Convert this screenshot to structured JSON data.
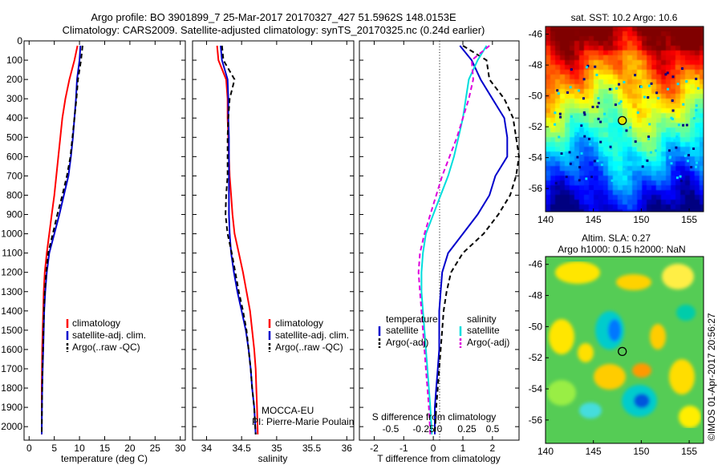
{
  "header": {
    "line1": "Argo profile: BO 3901899_7 25-Mar-2017 20170327_427 51.5962S 148.0153E",
    "line2": "Climatology: CARS2009. Satellite-adjusted climatology: synTS_20170325.nc (0.24d earlier)"
  },
  "side_label": "©IMOS 01-Apr-2017 20:56:27",
  "pi_label": {
    "line1": "MOCCA-EU",
    "line2": "PI: Pierre-Marie Poulain"
  },
  "colors": {
    "climatology": "#ff0000",
    "satellite": "#0000cc",
    "argo": "#000000",
    "salinity_sat": "#00dddd",
    "salinity_argo": "#dd00dd"
  },
  "chart_data": [
    {
      "type": "line",
      "panel": "temperature",
      "xlabel": "temperature (deg C)",
      "ylabel": "",
      "xlim": [
        -1,
        31
      ],
      "ylim": [
        0,
        2070
      ],
      "xticks": [
        0,
        5,
        10,
        15,
        20,
        25,
        30
      ],
      "yticks": [
        0,
        100,
        200,
        300,
        400,
        500,
        600,
        700,
        800,
        900,
        1000,
        1100,
        1200,
        1300,
        1400,
        1500,
        1600,
        1700,
        1800,
        1900,
        2000
      ],
      "legend": [
        "climatology",
        "satellite-adj. clim.",
        "Argo(..raw -QC)"
      ],
      "series": [
        {
          "name": "climatology",
          "style": "solid",
          "color": "#ff0000",
          "x": [
            9.6,
            9.0,
            8.0,
            7.2,
            6.6,
            6.2,
            5.8,
            5.4,
            5.0,
            4.5,
            4.0,
            3.5,
            3.1,
            2.9,
            2.8,
            2.7,
            2.6,
            2.55,
            2.5,
            2.5,
            2.5
          ],
          "y": [
            25,
            100,
            200,
            300,
            400,
            500,
            600,
            700,
            800,
            900,
            1000,
            1100,
            1200,
            1300,
            1400,
            1500,
            1600,
            1700,
            1800,
            1900,
            2040
          ]
        },
        {
          "name": "satellite-adj. clim.",
          "style": "solid",
          "color": "#0000cc",
          "x": [
            10.2,
            10.0,
            9.5,
            9.3,
            9.0,
            8.7,
            8.3,
            7.8,
            6.9,
            6.0,
            5.0,
            4.0,
            3.5,
            3.2,
            3.0,
            2.9,
            2.8,
            2.7,
            2.6,
            2.55,
            2.5
          ],
          "y": [
            25,
            100,
            200,
            300,
            400,
            500,
            600,
            700,
            800,
            900,
            1000,
            1100,
            1200,
            1300,
            1400,
            1500,
            1600,
            1700,
            1800,
            1900,
            2040
          ]
        },
        {
          "name": "Argo(..raw -QC)",
          "style": "dashed",
          "color": "#000000",
          "x": [
            10.6,
            10.3,
            9.7,
            9.4,
            9.0,
            8.6,
            8.2,
            7.5,
            6.6,
            5.6,
            4.7,
            3.8,
            3.4,
            3.1,
            2.95,
            2.85,
            2.75,
            2.65,
            2.6,
            2.55,
            2.5
          ],
          "y": [
            25,
            100,
            200,
            300,
            400,
            500,
            600,
            700,
            800,
            900,
            1000,
            1100,
            1200,
            1300,
            1400,
            1500,
            1600,
            1700,
            1800,
            1900,
            2040
          ]
        }
      ]
    },
    {
      "type": "line",
      "panel": "salinity",
      "xlabel": "salinity",
      "ylabel": "",
      "xlim": [
        33.8,
        36.1
      ],
      "ylim": [
        0,
        2070
      ],
      "xticks": [
        34,
        34.5,
        35,
        35.5,
        36
      ],
      "legend": [
        "climatology",
        "satellite-adj. clim.",
        "Argo(..raw -QC)"
      ],
      "series": [
        {
          "name": "climatology",
          "style": "solid",
          "color": "#ff0000",
          "x": [
            34.15,
            34.17,
            34.28,
            34.3,
            34.3,
            34.31,
            34.32,
            34.33,
            34.35,
            34.37,
            34.4,
            34.46,
            34.52,
            34.57,
            34.62,
            34.65,
            34.68,
            34.7,
            34.71,
            34.72,
            34.73
          ],
          "y": [
            25,
            100,
            200,
            300,
            400,
            500,
            600,
            700,
            800,
            900,
            1000,
            1100,
            1200,
            1300,
            1400,
            1500,
            1600,
            1700,
            1800,
            1900,
            2040
          ]
        },
        {
          "name": "satellite-adj. clim.",
          "style": "solid",
          "color": "#0000cc",
          "x": [
            34.2,
            34.22,
            34.3,
            34.31,
            34.31,
            34.32,
            34.32,
            34.32,
            34.32,
            34.32,
            34.33,
            34.35,
            34.39,
            34.44,
            34.5,
            34.56,
            34.6,
            34.63,
            34.65,
            34.68,
            34.7
          ],
          "y": [
            25,
            100,
            200,
            300,
            400,
            500,
            600,
            700,
            800,
            900,
            1000,
            1100,
            1200,
            1300,
            1400,
            1500,
            1600,
            1700,
            1800,
            1900,
            2040
          ]
        },
        {
          "name": "Argo(..raw -QC)",
          "style": "dashed",
          "color": "#000000",
          "x": [
            34.22,
            34.24,
            34.4,
            34.33,
            34.31,
            34.3,
            34.3,
            34.3,
            34.28,
            34.27,
            34.3,
            34.36,
            34.41,
            34.46,
            34.52,
            34.57,
            34.6,
            34.63,
            34.65,
            34.68,
            34.7
          ],
          "y": [
            25,
            100,
            200,
            300,
            400,
            500,
            600,
            700,
            800,
            900,
            1000,
            1100,
            1200,
            1300,
            1400,
            1500,
            1600,
            1700,
            1800,
            1900,
            2040
          ]
        }
      ]
    },
    {
      "type": "line",
      "panel": "difference",
      "xlabel": "T difference from climatology",
      "xlabel_top": "S difference from climatology",
      "xlim": [
        -2.5,
        2.9
      ],
      "ylim": [
        0,
        2070
      ],
      "xticks": [
        -2,
        -1,
        0,
        1,
        2
      ],
      "s_ticks": [
        "-0.5",
        "-0.25",
        "0",
        "0.25",
        "0.5"
      ],
      "legend_groups": [
        {
          "title": "temperature",
          "items": [
            "satellite",
            "Argo(-adj)"
          ]
        },
        {
          "title": "salinity",
          "items": [
            "satellite",
            "Argo(-adj)"
          ]
        }
      ],
      "series": [
        {
          "name": "temperature satellite",
          "style": "solid",
          "color": "#0000cc",
          "x": [
            0.9,
            1.3,
            1.6,
            2.0,
            2.4,
            2.5,
            2.5,
            2.1,
            1.9,
            1.5,
            1.0,
            0.5,
            0.3,
            0.25,
            0.2,
            0.2,
            0.2,
            0.15,
            0.1,
            0.05,
            0.05
          ],
          "y": [
            25,
            100,
            200,
            300,
            400,
            500,
            600,
            700,
            800,
            900,
            1000,
            1100,
            1200,
            1300,
            1400,
            1500,
            1600,
            1700,
            1800,
            1900,
            2040
          ]
        },
        {
          "name": "temperature Argo(-adj)",
          "style": "dashed",
          "color": "#000000",
          "x": [
            1.0,
            1.8,
            1.9,
            2.4,
            2.7,
            2.8,
            2.9,
            2.8,
            2.6,
            2.2,
            1.7,
            1.0,
            0.6,
            0.45,
            0.35,
            0.3,
            0.25,
            0.2,
            0.15,
            0.1,
            0.05
          ],
          "y": [
            25,
            100,
            200,
            300,
            400,
            500,
            600,
            700,
            800,
            900,
            1000,
            1100,
            1200,
            1300,
            1400,
            1500,
            1600,
            1700,
            1800,
            1900,
            2040
          ]
        },
        {
          "name": "salinity satellite",
          "style": "solid",
          "color": "#00dddd",
          "x": [
            1.8,
            1.5,
            1.2,
            1.1,
            1.0,
            0.85,
            0.7,
            0.5,
            0.25,
            0.0,
            -0.25,
            -0.35,
            -0.4,
            -0.4,
            -0.35,
            -0.3,
            -0.25,
            -0.2,
            -0.15,
            -0.1,
            -0.05
          ],
          "y": [
            25,
            100,
            200,
            300,
            400,
            500,
            600,
            700,
            800,
            900,
            1000,
            1100,
            1200,
            1300,
            1400,
            1500,
            1600,
            1700,
            1800,
            1900,
            2040
          ]
        },
        {
          "name": "salinity Argo(-adj)",
          "style": "dashed",
          "color": "#dd00dd",
          "x": [
            1.9,
            1.3,
            1.35,
            1.2,
            1.0,
            0.8,
            0.55,
            0.3,
            0.1,
            -0.1,
            -0.3,
            -0.45,
            -0.5,
            -0.45,
            -0.4,
            -0.35,
            -0.3,
            -0.25,
            -0.2,
            -0.15,
            -0.1
          ],
          "y": [
            25,
            100,
            200,
            300,
            400,
            500,
            600,
            700,
            800,
            900,
            1000,
            1100,
            1200,
            1300,
            1400,
            1500,
            1600,
            1700,
            1800,
            1900,
            2040
          ]
        }
      ]
    },
    {
      "type": "heatmap",
      "panel": "sst_map",
      "title": "sat. SST: 10.2  Argo: 10.6",
      "xlim": [
        140,
        156.5
      ],
      "ylim": [
        -57.5,
        -45.5
      ],
      "xticks": [
        140,
        145,
        150,
        155
      ],
      "yticks": [
        -46,
        -48,
        -50,
        -52,
        -54,
        -56
      ],
      "marker": {
        "lon": 148.0153,
        "lat": -51.5962
      }
    },
    {
      "type": "heatmap",
      "panel": "sla_map",
      "title": "Altim. SLA: 0.27",
      "subtitle": "Argo h1000: 0.15  h2000: NaN",
      "xlim": [
        140,
        156.5
      ],
      "ylim": [
        -57.5,
        -45.5
      ],
      "xticks": [
        140,
        145,
        150,
        155
      ],
      "yticks": [
        -46,
        -48,
        -50,
        -52,
        -54,
        -56
      ],
      "marker": {
        "lon": 148.0153,
        "lat": -51.5962
      }
    }
  ]
}
